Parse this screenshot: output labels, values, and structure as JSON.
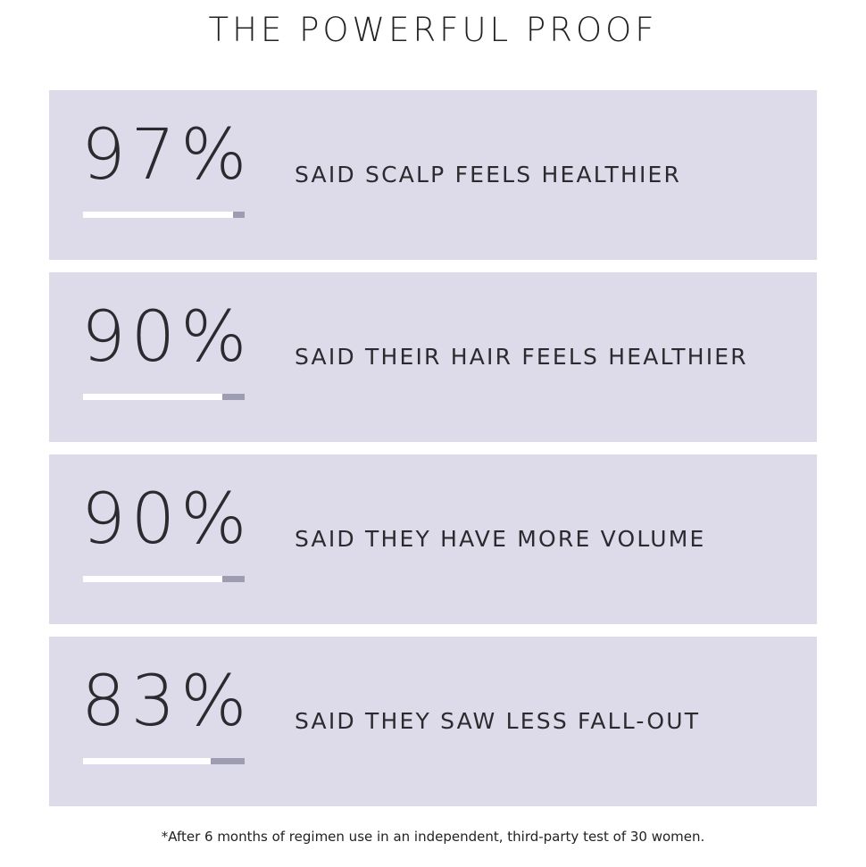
{
  "title": "THE POWERFUL PROOF",
  "stats": [
    {
      "value": "97%",
      "percent": 97,
      "label": "SAID SCALP FEELS HEALTHIER"
    },
    {
      "value": "90%",
      "percent": 90,
      "label": "SAID THEIR HAIR FEELS HEALTHIER"
    },
    {
      "value": "90%",
      "percent": 90,
      "label": "SAID THEY HAVE MORE VOLUME"
    },
    {
      "value": "83%",
      "percent": 83,
      "label": "SAID THEY SAW LESS FALL-OUT"
    }
  ],
  "footnote": "*After 6 months of regimen use in an independent, third-party test of 30 women.",
  "colors": {
    "panel": "#dddbea",
    "bar_fill": "#ffffff",
    "bar_track": "#9e9cb1"
  }
}
